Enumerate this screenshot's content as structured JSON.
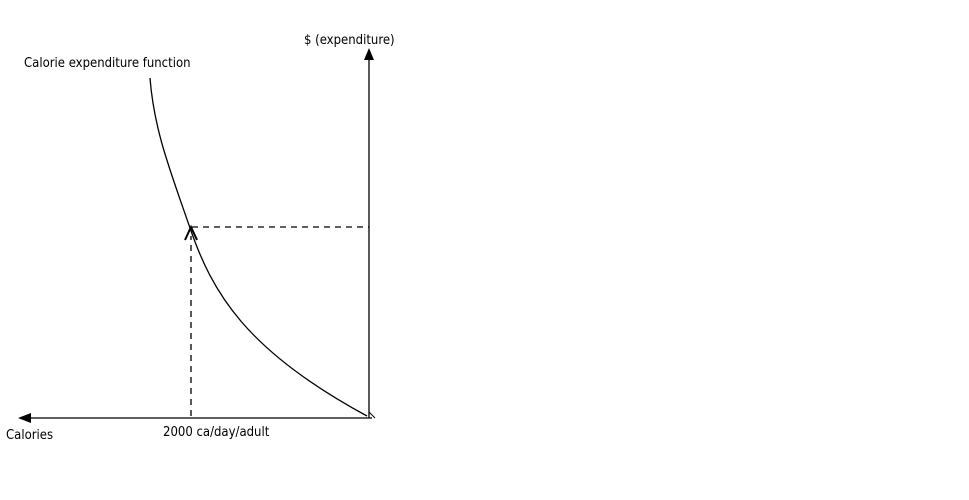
{
  "labels": {
    "y_axis": "$ (expenditure)",
    "x_axis": "Calories",
    "curve": "Calorie expenditure function",
    "marker": "2000 ca/day/adult"
  },
  "colors": {
    "line": "#000000",
    "background": "#ffffff"
  }
}
